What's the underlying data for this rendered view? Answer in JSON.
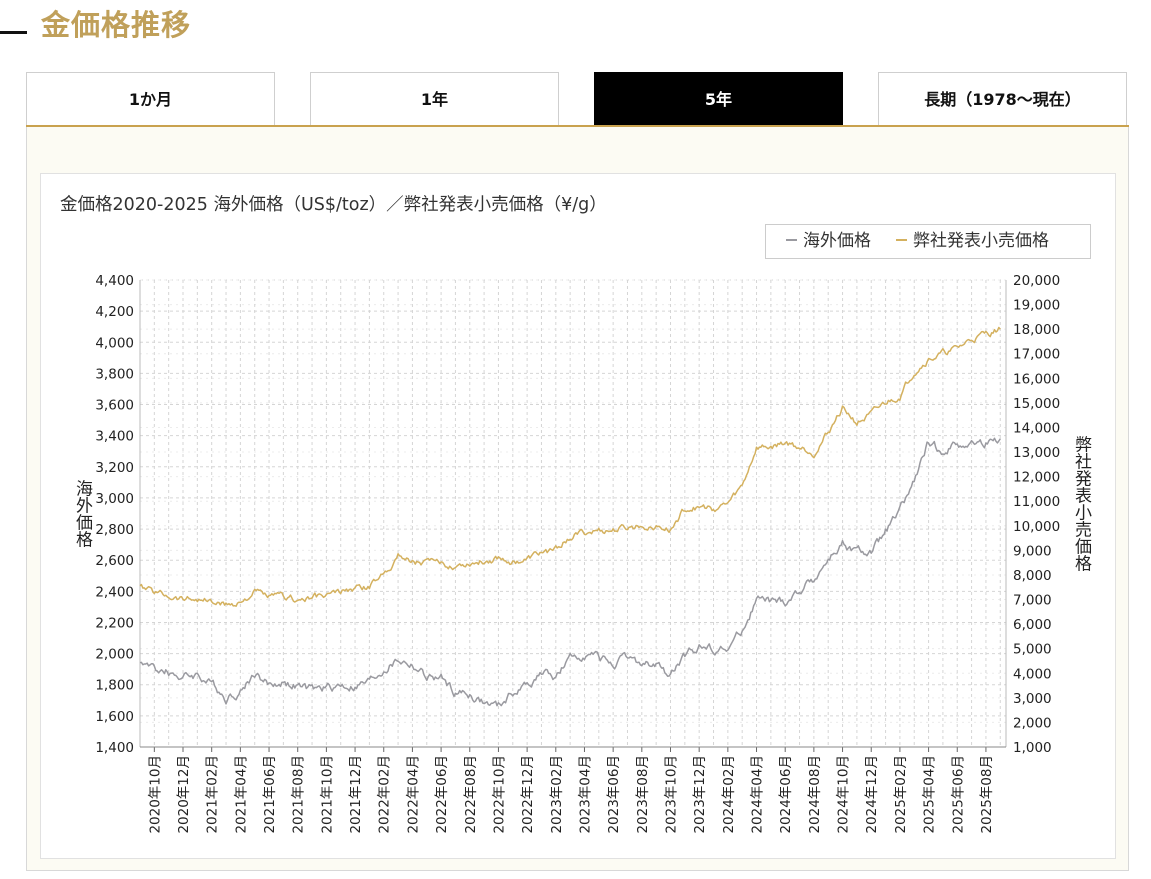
{
  "page": {
    "heading": "金価格推移"
  },
  "tabs": [
    {
      "label": "1か月",
      "active": false
    },
    {
      "label": "1年",
      "active": false
    },
    {
      "label": "5年",
      "active": true
    },
    {
      "label": "長期（1978～現在）",
      "active": false
    }
  ],
  "colors": {
    "accent": "#c9a24e",
    "heading": "#c0a05a",
    "series_overseas": "#9a9aa0",
    "series_retail": "#d4b15f",
    "grid": "#d5d5d5"
  },
  "chart_data": {
    "type": "line",
    "title": "金価格2020-2025 海外価格（US$/toz）／弊社発表小売価格（¥/g）",
    "ylabel": "海外価格",
    "ylabel_right": "弊社発表小売価格",
    "legend_position": "top-right",
    "grid": true,
    "ylim": [
      1400,
      4400
    ],
    "ylim_right": [
      1000,
      20000
    ],
    "yticks": [
      "1,400",
      "1,600",
      "1,800",
      "2,000",
      "2,200",
      "2,400",
      "2,600",
      "2,800",
      "3,000",
      "3,200",
      "3,400",
      "3,600",
      "3,800",
      "4,000",
      "4,200",
      "4,400"
    ],
    "yticks_right": [
      "1,000",
      "2,000",
      "3,000",
      "4,000",
      "5,000",
      "6,000",
      "7,000",
      "8,000",
      "9,000",
      "10,000",
      "11,000",
      "12,000",
      "13,000",
      "14,000",
      "15,000",
      "16,000",
      "17,000",
      "18,000",
      "19,000",
      "20,000"
    ],
    "x_tick_labels": [
      "2020年10月",
      "2020年12月",
      "2021年02月",
      "2021年04月",
      "2021年06月",
      "2021年08月",
      "2021年10月",
      "2021年12月",
      "2022年02月",
      "2022年04月",
      "2022年06月",
      "2022年08月",
      "2022年10月",
      "2022年12月",
      "2023年02月",
      "2023年04月",
      "2023年06月",
      "2023年08月",
      "2023年10月",
      "2023年12月",
      "2024年02月",
      "2024年04月",
      "2024年06月",
      "2024年08月",
      "2024年10月",
      "2024年12月",
      "2025年02月",
      "2025年04月",
      "2025年06月",
      "2025年08月"
    ],
    "x": [
      "2020-09",
      "2020-10",
      "2020-11",
      "2020-12",
      "2021-01",
      "2021-02",
      "2021-03",
      "2021-04",
      "2021-05",
      "2021-06",
      "2021-07",
      "2021-08",
      "2021-09",
      "2021-10",
      "2021-11",
      "2021-12",
      "2022-01",
      "2022-02",
      "2022-03",
      "2022-04",
      "2022-05",
      "2022-06",
      "2022-07",
      "2022-08",
      "2022-09",
      "2022-10",
      "2022-11",
      "2022-12",
      "2023-01",
      "2023-02",
      "2023-03",
      "2023-04",
      "2023-05",
      "2023-06",
      "2023-07",
      "2023-08",
      "2023-09",
      "2023-10",
      "2023-11",
      "2023-12",
      "2024-01",
      "2024-02",
      "2024-03",
      "2024-04",
      "2024-05",
      "2024-06",
      "2024-07",
      "2024-08",
      "2024-09",
      "2024-10",
      "2024-11",
      "2024-12",
      "2025-01",
      "2025-02",
      "2025-03",
      "2025-04",
      "2025-05",
      "2025-06",
      "2025-07",
      "2025-08",
      "2025-09"
    ],
    "series": [
      {
        "name": "海外価格",
        "axis": "left",
        "values": [
          1950,
          1900,
          1880,
          1850,
          1870,
          1800,
          1720,
          1760,
          1880,
          1800,
          1820,
          1790,
          1760,
          1780,
          1800,
          1790,
          1820,
          1900,
          1960,
          1930,
          1850,
          1840,
          1750,
          1740,
          1680,
          1660,
          1750,
          1800,
          1880,
          1850,
          1960,
          2000,
          1970,
          1940,
          1960,
          1930,
          1920,
          1860,
          1980,
          2050,
          2040,
          2030,
          2150,
          2350,
          2330,
          2330,
          2400,
          2480,
          2600,
          2700,
          2650,
          2650,
          2780,
          2900,
          3100,
          3350,
          3300,
          3350,
          3350,
          3350,
          3380
        ]
      },
      {
        "name": "弊社発表小売価格",
        "axis": "right",
        "values": [
          7500,
          7300,
          7200,
          7050,
          7050,
          6900,
          6750,
          6900,
          7300,
          7100,
          7100,
          7000,
          7050,
          7150,
          7300,
          7450,
          7500,
          8100,
          8800,
          8600,
          8500,
          8400,
          8400,
          8500,
          8550,
          8700,
          8550,
          8600,
          8900,
          9000,
          9600,
          9700,
          9800,
          9800,
          9900,
          10000,
          10050,
          9800,
          10700,
          10750,
          10700,
          10900,
          11600,
          13200,
          13200,
          13400,
          13200,
          13000,
          13800,
          14800,
          14200,
          14500,
          15000,
          15300,
          16300,
          16800,
          17000,
          17200,
          17600,
          17800,
          18000
        ]
      }
    ]
  }
}
